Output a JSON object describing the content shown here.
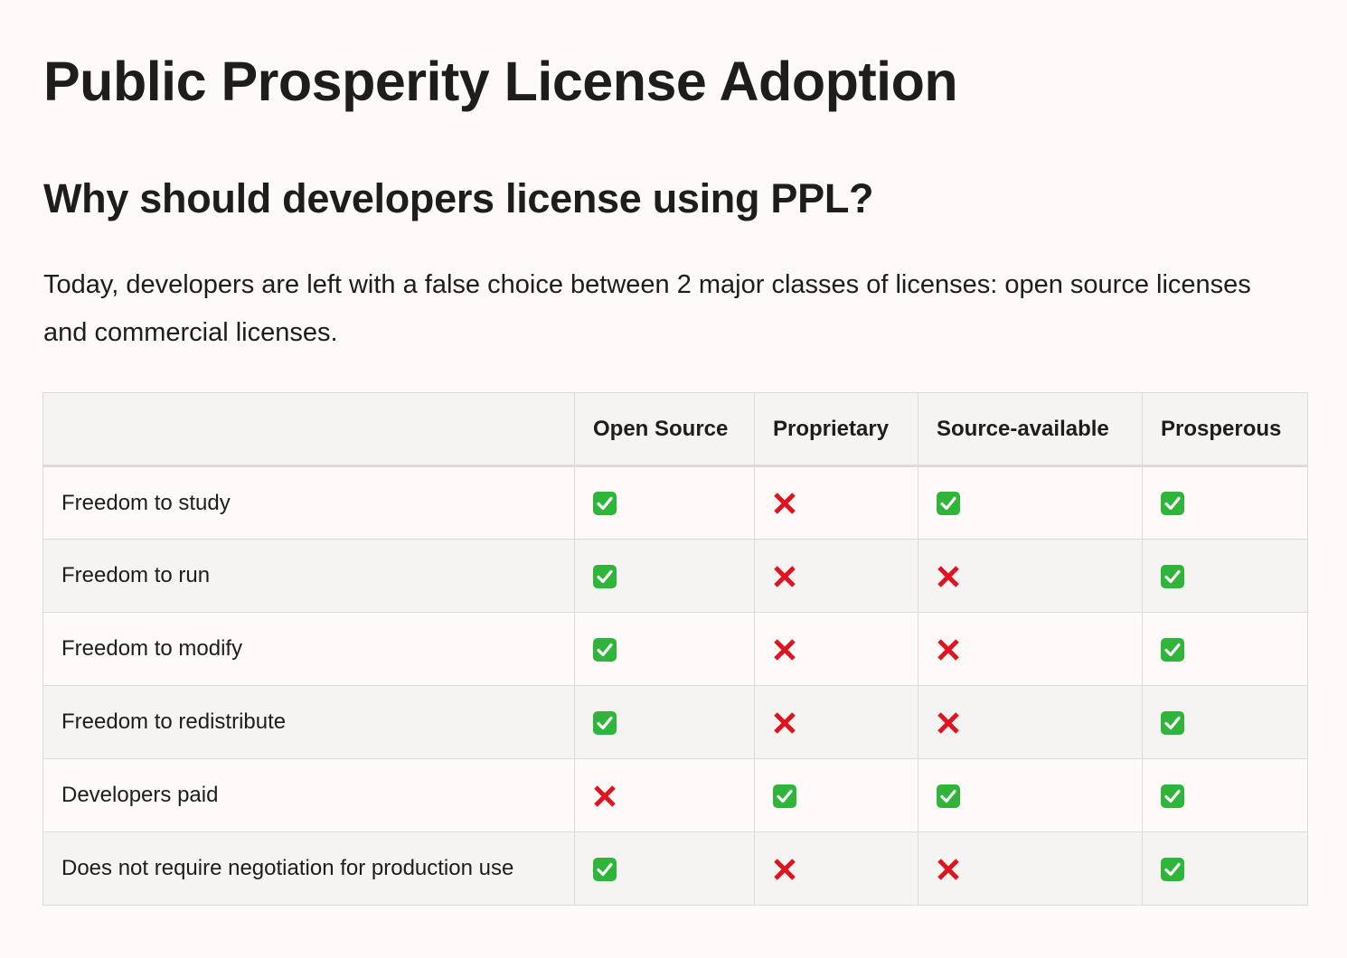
{
  "title": "Public Prosperity License Adoption",
  "subtitle": "Why should developers license using PPL?",
  "intro": "Today, developers are left with a false choice between 2 major classes of licenses: open source licenses and commercial licenses.",
  "table": {
    "headers": [
      "",
      "Open Source",
      "Proprietary",
      "Source-available",
      "Prosperous"
    ],
    "rows": [
      {
        "label": "Freedom to study",
        "values": [
          "yes",
          "no",
          "yes",
          "yes"
        ]
      },
      {
        "label": "Freedom to run",
        "values": [
          "yes",
          "no",
          "no",
          "yes"
        ]
      },
      {
        "label": "Freedom to modify",
        "values": [
          "yes",
          "no",
          "no",
          "yes"
        ]
      },
      {
        "label": "Freedom to redistribute",
        "values": [
          "yes",
          "no",
          "no",
          "yes"
        ]
      },
      {
        "label": "Developers paid",
        "values": [
          "no",
          "yes",
          "yes",
          "yes"
        ]
      },
      {
        "label": "Does not require negotiation for production use",
        "values": [
          "yes",
          "no",
          "no",
          "yes"
        ]
      }
    ]
  },
  "icons": {
    "yes": "check-mark-button-icon",
    "no": "cross-mark-icon"
  },
  "colors": {
    "check_green": "#2fb53a",
    "cross_red": "#e0141e",
    "text": "#1f1c1c",
    "border": "#dedada"
  }
}
